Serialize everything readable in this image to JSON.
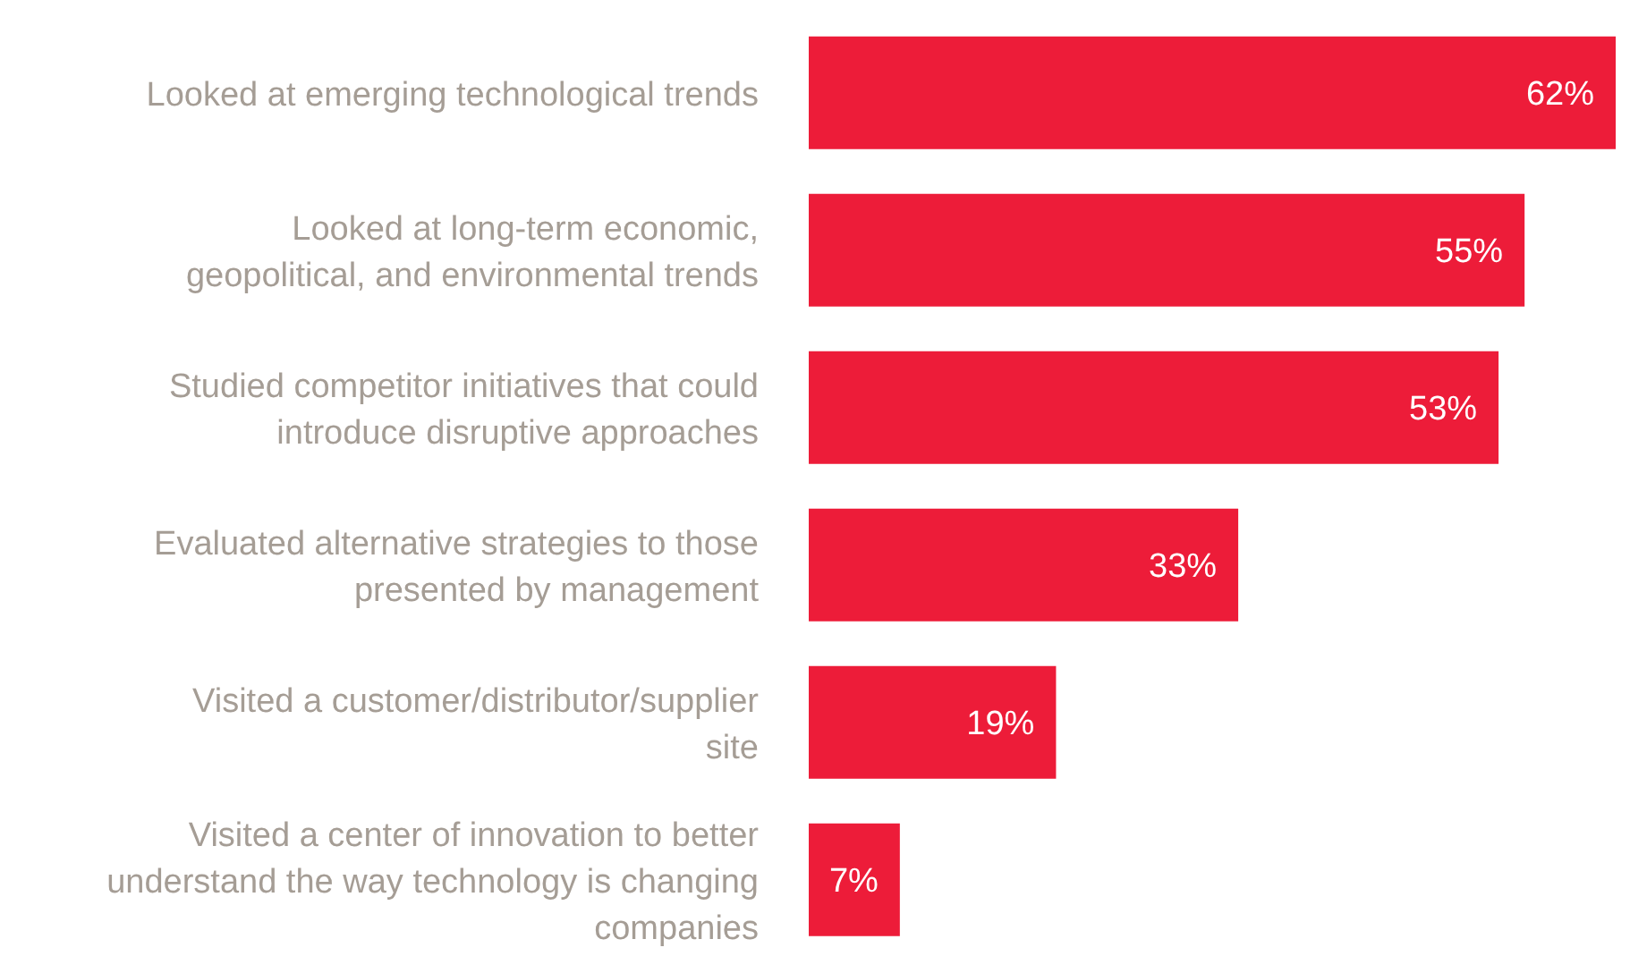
{
  "chart_data": {
    "type": "bar",
    "orientation": "horizontal",
    "tick_labels": false,
    "categories": [
      "Looked at emerging technological trends",
      "Looked at long-term economic, geopolitical, and environmental trends",
      "Studied competitor initiatives that could introduce disruptive approaches",
      "Evaluated alternative strategies to those presented by management",
      "Visited a customer/distributor/supplier site",
      "Visited a center of innovation to better understand the way technology is changing companies"
    ],
    "values": [
      62,
      55,
      53,
      33,
      19,
      7
    ],
    "value_labels": [
      "62%",
      "55%",
      "53%",
      "33%",
      "19%",
      "7%"
    ],
    "color": "#ed1c39",
    "grid": false
  }
}
